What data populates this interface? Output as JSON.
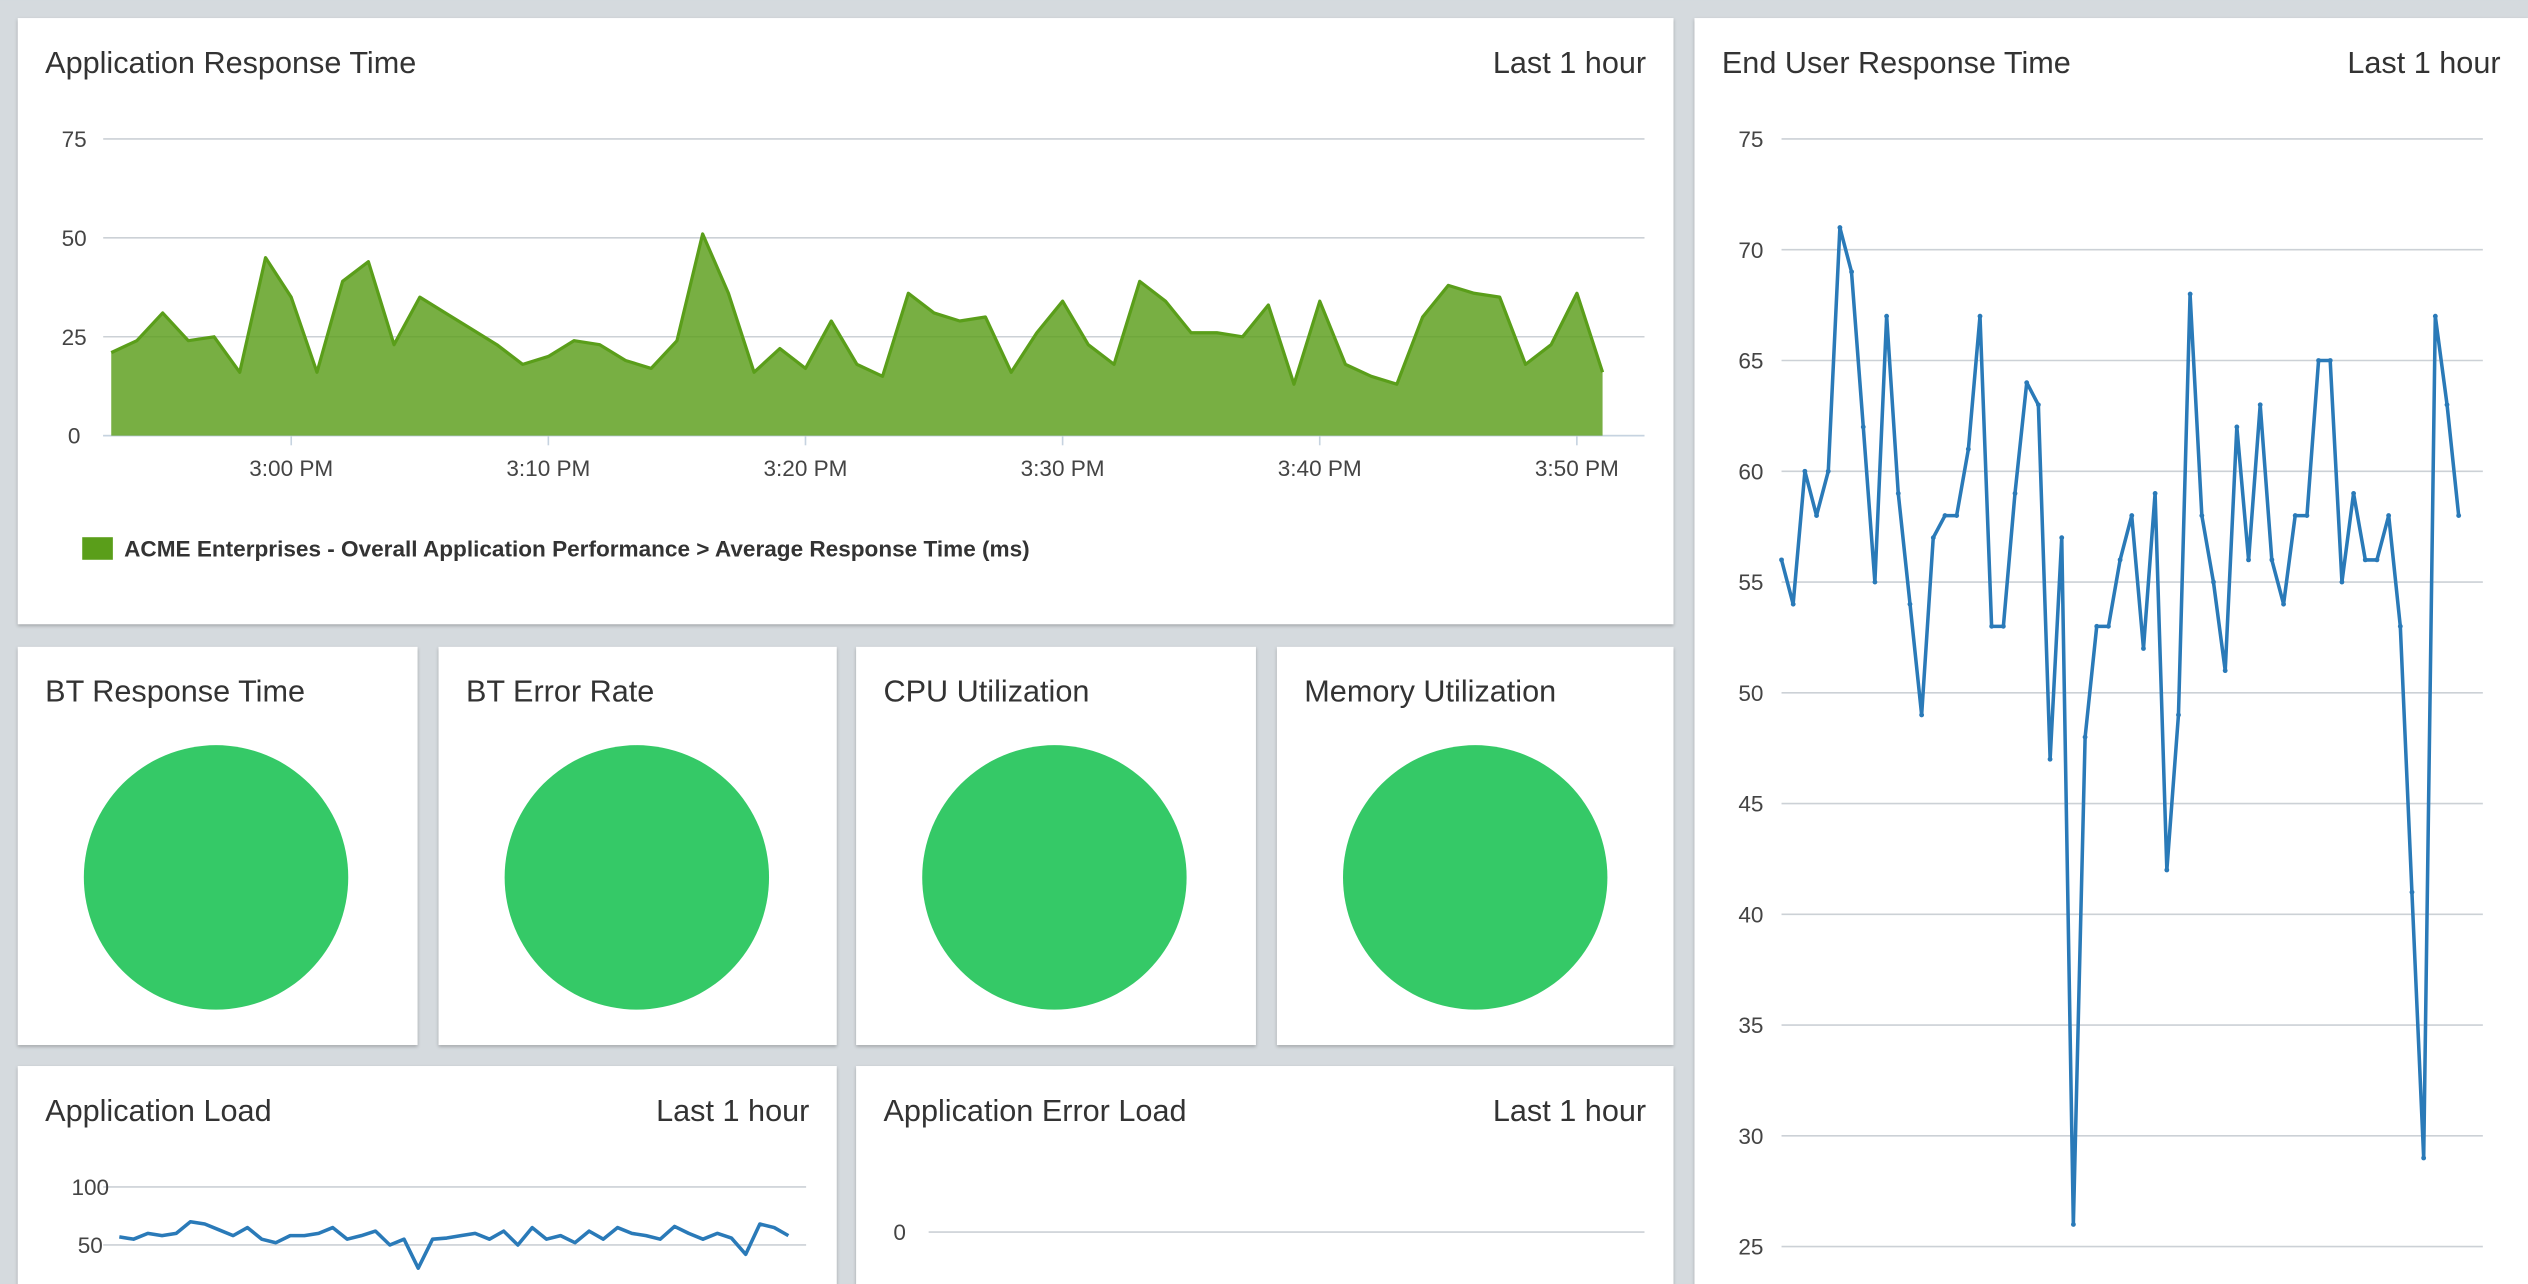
{
  "chart_data": [
    {
      "type": "area",
      "title": "Application Response Time",
      "range_label": "Last 1 hour",
      "x": [
        "2:53 PM",
        "2:54 PM",
        "2:55 PM",
        "2:56 PM",
        "2:57 PM",
        "2:58 PM",
        "2:59 PM",
        "3:00 PM",
        "3:01 PM",
        "3:02 PM",
        "3:03 PM",
        "3:04 PM",
        "3:05 PM",
        "3:06 PM",
        "3:07 PM",
        "3:08 PM",
        "3:09 PM",
        "3:10 PM",
        "3:11 PM",
        "3:12 PM",
        "3:13 PM",
        "3:14 PM",
        "3:15 PM",
        "3:16 PM",
        "3:17 PM",
        "3:18 PM",
        "3:19 PM",
        "3:20 PM",
        "3:21 PM",
        "3:22 PM",
        "3:23 PM",
        "3:24 PM",
        "3:25 PM",
        "3:26 PM",
        "3:27 PM",
        "3:28 PM",
        "3:29 PM",
        "3:30 PM",
        "3:31 PM",
        "3:32 PM",
        "3:33 PM",
        "3:34 PM",
        "3:35 PM",
        "3:36 PM",
        "3:37 PM",
        "3:38 PM",
        "3:39 PM",
        "3:40 PM",
        "3:41 PM",
        "3:42 PM",
        "3:43 PM",
        "3:44 PM",
        "3:45 PM",
        "3:46 PM",
        "3:47 PM",
        "3:48 PM",
        "3:49 PM",
        "3:50 PM",
        "3:51 PM"
      ],
      "series": [
        {
          "name": "ACME Enterprises - Overall Application Performance > Average Response Time (ms)",
          "color": "#5a9e1a",
          "values": [
            21,
            24,
            31,
            24,
            25,
            16,
            45,
            35,
            16,
            39,
            44,
            23,
            35,
            31,
            27,
            23,
            18,
            20,
            24,
            23,
            19,
            17,
            24,
            51,
            36,
            16,
            22,
            17,
            29,
            18,
            15,
            36,
            31,
            29,
            30,
            16,
            26,
            34,
            23,
            18,
            39,
            34,
            26,
            26,
            25,
            33,
            13,
            34,
            18,
            15,
            13,
            30,
            38,
            36,
            35,
            18,
            23,
            36,
            16
          ]
        }
      ],
      "xticks": [
        "3:00 PM",
        "3:10 PM",
        "3:20 PM",
        "3:30 PM",
        "3:40 PM",
        "3:50 PM"
      ],
      "xlim": [
        "2:53 PM",
        "3:51 PM"
      ],
      "ylim": [
        0,
        75
      ],
      "yticks": [
        0,
        25,
        50,
        75
      ],
      "grid": true
    },
    {
      "type": "line",
      "title": "End User Response Time",
      "range_label": "Last 1 hour",
      "series": [
        {
          "color": "#2a7ab8",
          "values": [
            56,
            54,
            60,
            58,
            60,
            71,
            69,
            62,
            55,
            67,
            59,
            54,
            49,
            57,
            58,
            58,
            61,
            67,
            53,
            53,
            59,
            64,
            63,
            47,
            57,
            26,
            48,
            53,
            53,
            56,
            58,
            52,
            59,
            42,
            49,
            68,
            58,
            55,
            51,
            62,
            56,
            63,
            56,
            54,
            58,
            58,
            65,
            65,
            55,
            59,
            56,
            56,
            58,
            53,
            41,
            29,
            67,
            63,
            58
          ]
        }
      ],
      "ylim": [
        25,
        75
      ],
      "yticks": [
        25,
        30,
        35,
        40,
        45,
        50,
        55,
        60,
        65,
        70,
        75
      ],
      "grid": true
    },
    {
      "type": "line",
      "title": "Application Load",
      "range_label": "Last 1 hour",
      "series": [
        {
          "color": "#2a7ab8",
          "values": [
            57,
            55,
            60,
            58,
            60,
            70,
            68,
            63,
            58,
            65,
            55,
            52,
            58,
            58,
            60,
            65,
            55,
            58,
            62,
            50,
            55,
            30,
            55,
            56,
            58,
            60,
            55,
            62,
            50,
            65,
            55,
            58,
            52,
            62,
            55,
            65,
            60,
            58,
            55,
            66,
            60,
            55,
            60,
            56,
            42,
            68,
            65,
            58
          ]
        }
      ],
      "ylim": [
        0,
        100
      ],
      "yticks": [
        50,
        100
      ],
      "grid": true
    },
    {
      "type": "line",
      "title": "Application Error Load",
      "range_label": "Last 1 hour",
      "yticks": [
        0
      ],
      "grid": true
    }
  ],
  "status_widgets": [
    {
      "title": "BT Response Time",
      "color": "#35c967"
    },
    {
      "title": "BT Error Rate",
      "color": "#35c967"
    },
    {
      "title": "CPU Utilization",
      "color": "#35c967"
    },
    {
      "title": "Memory Utilization",
      "color": "#35c967"
    }
  ]
}
